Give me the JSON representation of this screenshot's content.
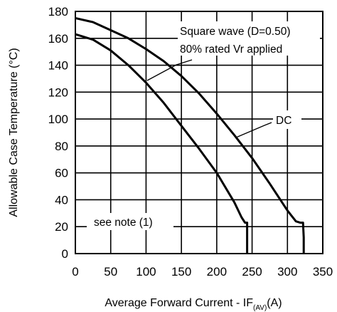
{
  "chart_data": {
    "type": "line",
    "ylabel": "Allowable Case Temperature  (°C)",
    "xlabel_main": "Average Forward Current - IF",
    "xlabel_sub": "(AV)",
    "xlabel_unit": "(A)",
    "xlim": [
      0,
      350
    ],
    "ylim": [
      0,
      180
    ],
    "x_ticks": [
      0,
      50,
      100,
      150,
      200,
      250,
      300,
      350
    ],
    "y_ticks": [
      0,
      20,
      40,
      60,
      80,
      100,
      120,
      140,
      160,
      180
    ],
    "x_tick_labels": [
      "0",
      "50",
      "100",
      "150",
      "200",
      "250",
      "300",
      "350"
    ],
    "y_tick_labels": [
      "0",
      "20",
      "40",
      "60",
      "80",
      "100",
      "120",
      "140",
      "160",
      "180"
    ],
    "grid": true,
    "series": [
      {
        "name": "DC",
        "x": [
          0,
          25,
          50,
          75,
          100,
          125,
          150,
          175,
          200,
          225,
          250,
          275,
          300,
          312,
          318,
          322,
          323,
          323
        ],
        "y": [
          175,
          172,
          166,
          160,
          152,
          143,
          132,
          119,
          104,
          88,
          71,
          52,
          32,
          24,
          23,
          23,
          12,
          0
        ]
      },
      {
        "name": "Square wave (D=0.50)",
        "x": [
          0,
          25,
          50,
          75,
          100,
          125,
          150,
          175,
          200,
          225,
          235,
          240,
          243,
          243
        ],
        "y": [
          163,
          159,
          151,
          140,
          127,
          112,
          95,
          78,
          60,
          38,
          27,
          23,
          23,
          0
        ]
      }
    ],
    "annotations": [
      {
        "id": "square",
        "lines": [
          "Square wave (D=0.50)",
          "80% rated Vr applied"
        ]
      },
      {
        "id": "dc",
        "text": "DC"
      },
      {
        "id": "note",
        "text": "see note (1)"
      }
    ]
  }
}
